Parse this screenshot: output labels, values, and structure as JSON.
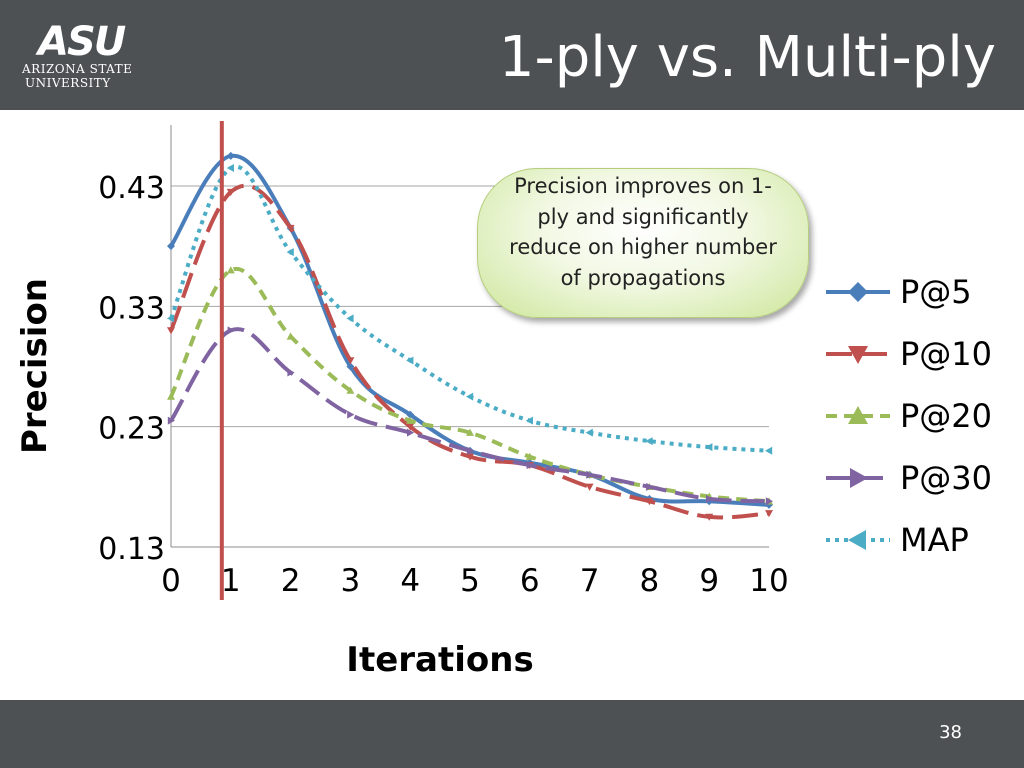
{
  "slide": {
    "title": "1-ply vs. Multi-ply",
    "page_number": "38",
    "logo": {
      "mark": "ASU",
      "line1": "ARIZONA STATE",
      "line2": "UNIVERSITY"
    },
    "callout": "Precision improves on 1-ply and significantly reduce on higher number of propagations"
  },
  "colors": {
    "header": "#4d5153",
    "reference_line": "#c0504d"
  },
  "chart_data": {
    "type": "line",
    "xlabel": "Iterations",
    "ylabel": "Precision",
    "x": [
      0,
      1,
      2,
      3,
      4,
      5,
      6,
      7,
      8,
      9,
      10
    ],
    "xticks": [
      "0",
      "1",
      "2",
      "3",
      "4",
      "5",
      "6",
      "7",
      "8",
      "9",
      "10"
    ],
    "yticks": [
      "0.13",
      "0.23",
      "0.33",
      "0.43"
    ],
    "ylim": [
      0.13,
      0.48
    ],
    "reference_line_x": 0.85,
    "legend_position": "right",
    "grid": "horizontal",
    "series": [
      {
        "name": "P@5",
        "color": "#4a7ebb",
        "dash": "none",
        "marker": "diamond",
        "values": [
          0.38,
          0.455,
          0.395,
          0.28,
          0.24,
          0.21,
          0.2,
          0.19,
          0.17,
          0.168,
          0.165
        ]
      },
      {
        "name": "P@10",
        "color": "#c0504d",
        "dash": "26,9",
        "marker": "triangle-down",
        "values": [
          0.31,
          0.425,
          0.395,
          0.285,
          0.23,
          0.205,
          0.198,
          0.18,
          0.168,
          0.155,
          0.158
        ]
      },
      {
        "name": "P@20",
        "color": "#9bbb59",
        "dash": "11,7",
        "marker": "triangle-up",
        "values": [
          0.255,
          0.36,
          0.305,
          0.26,
          0.235,
          0.225,
          0.205,
          0.19,
          0.18,
          0.172,
          0.168
        ]
      },
      {
        "name": "P@30",
        "color": "#8064a2",
        "dash": "24,9",
        "marker": "triangle-right",
        "values": [
          0.235,
          0.31,
          0.275,
          0.24,
          0.225,
          0.21,
          0.198,
          0.19,
          0.18,
          0.17,
          0.168
        ]
      },
      {
        "name": "MAP",
        "color": "#4bacc6",
        "dash": "4,5",
        "marker": "triangle-left",
        "values": [
          0.32,
          0.445,
          0.375,
          0.32,
          0.285,
          0.255,
          0.235,
          0.225,
          0.218,
          0.213,
          0.21
        ]
      }
    ]
  }
}
